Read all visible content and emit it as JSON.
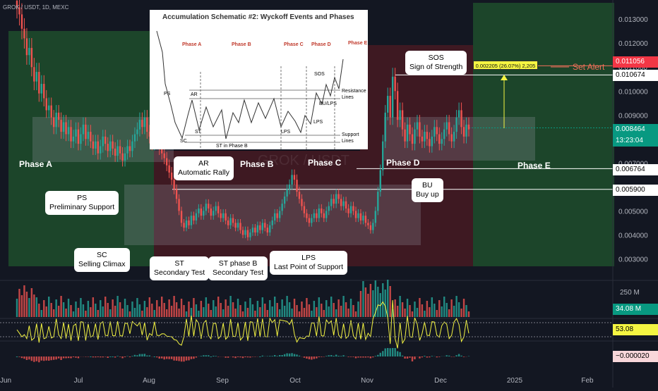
{
  "chart_data": {
    "type": "candlestick",
    "title": "GROK / USDT, 1D, MEXC",
    "watermark": "GROK / USDT",
    "x_ticks": [
      "Jun",
      "Jul",
      "Aug",
      "Sep",
      "Oct",
      "Nov",
      "Dec",
      "2025",
      "Feb"
    ],
    "y_ticks": [
      "0.013000",
      "0.012000",
      "0.011000",
      "0.010000",
      "0.009000",
      "0.008000",
      "0.007000",
      "0.006000",
      "0.005000",
      "0.004000",
      "0.003000"
    ],
    "ylim": [
      0.0021,
      0.0138
    ],
    "price_levels": [
      {
        "label": "0.011056",
        "value": 0.011056,
        "color": "#f23645"
      },
      {
        "label": "0.010674",
        "value": 0.010674,
        "color": "#ffffff"
      },
      {
        "label": "0.008464",
        "value": 0.008464,
        "color": "#089981"
      },
      {
        "label": "0.006764",
        "value": 0.006764,
        "color": "#ffffff"
      },
      {
        "label": "0.005900",
        "value": 0.0059,
        "color": "#ffffff"
      }
    ],
    "countdown": "13:23:04",
    "close_approx": [
      0.0135,
      0.0132,
      0.0126,
      0.0122,
      0.0115,
      0.0118,
      0.011,
      0.0104,
      0.0108,
      0.0099,
      0.0103,
      0.0097,
      0.0092,
      0.0094,
      0.0089,
      0.0085,
      0.0091,
      0.0088,
      0.0083,
      0.0087,
      0.0082,
      0.0085,
      0.0079,
      0.0081,
      0.0084,
      0.0078,
      0.0082,
      0.0086,
      0.008,
      0.0083,
      0.0079,
      0.0076,
      0.0079,
      0.0074,
      0.0077,
      0.0081,
      0.0078,
      0.0075,
      0.0079,
      0.0076,
      0.0073,
      0.0077,
      0.0074,
      0.0071,
      0.0074,
      0.0077,
      0.0075,
      0.0079,
      0.0082,
      0.0084,
      0.0088,
      0.0085,
      0.0089,
      0.0083,
      0.0081,
      0.0078,
      0.0082,
      0.0079,
      0.0076,
      0.0074,
      0.0072,
      0.0069,
      0.0066,
      0.0063,
      0.0059,
      0.0055,
      0.005,
      0.0045,
      0.0043,
      0.0046,
      0.0044,
      0.0048,
      0.0046,
      0.0049,
      0.0051,
      0.0048,
      0.005,
      0.0053,
      0.0051,
      0.0048,
      0.005,
      0.0052,
      0.0049,
      0.0047,
      0.0049,
      0.0046,
      0.0044,
      0.0047,
      0.0045,
      0.0043,
      0.0045,
      0.0042,
      0.004,
      0.0042,
      0.0039,
      0.0041,
      0.0043,
      0.0041,
      0.0044,
      0.0042,
      0.0045,
      0.0043,
      0.0041,
      0.0044,
      0.0046,
      0.0049,
      0.0047,
      0.005,
      0.0053,
      0.0056,
      0.0059,
      0.0061,
      0.0065,
      0.0063,
      0.0058,
      0.0055,
      0.0052,
      0.0049,
      0.0047,
      0.0045,
      0.0047,
      0.0049,
      0.0047,
      0.0051,
      0.0049,
      0.0047,
      0.005,
      0.0052,
      0.0055,
      0.0053,
      0.0057,
      0.0055,
      0.0052,
      0.0054,
      0.0051,
      0.0049,
      0.0052,
      0.005,
      0.0047,
      0.0049,
      0.0046,
      0.0048,
      0.0045,
      0.0044,
      0.0042,
      0.0045,
      0.005,
      0.0058,
      0.0067,
      0.0079,
      0.0091,
      0.0098,
      0.0089,
      0.0106,
      0.01,
      0.0088,
      0.0092,
      0.0084,
      0.0079,
      0.0086,
      0.0082,
      0.0078,
      0.0084,
      0.0087,
      0.0081,
      0.0079,
      0.0083,
      0.008,
      0.0077,
      0.0081,
      0.0085,
      0.0082,
      0.0078,
      0.008,
      0.0084,
      0.0087,
      0.0082,
      0.0079,
      0.0083,
      0.0089,
      0.0092,
      0.0085,
      0.0081,
      0.0086,
      0.0084
    ],
    "volume_label": "250 M",
    "volume_last": "34.08 M",
    "rsi_last": "53.08",
    "macd_last": "−0.000020",
    "alert_label": "Set Alert",
    "measure_label": "0.002205 (26.07%) 2,205"
  },
  "phases": {
    "a": "Phase A",
    "b": "Phase B",
    "c": "Phase C",
    "d": "Phase D",
    "e": "Phase E"
  },
  "callouts": {
    "ps": [
      "PS",
      "Preliminary Support"
    ],
    "sc": [
      "SC",
      "Selling Climax"
    ],
    "ar": [
      "AR",
      "Automatic Rally"
    ],
    "st": [
      "ST",
      "Secondary Test"
    ],
    "stb": [
      "ST phase B",
      "Secondary Test"
    ],
    "lps": [
      "LPS",
      "Last Point of Support"
    ],
    "bu": [
      "BU",
      "Buy up"
    ],
    "sos": [
      "SOS",
      "Sign of Strength"
    ]
  },
  "schematic": {
    "title": "Accumulation Schematic #2: Wyckoff Events and Phases",
    "phases": [
      "Phase A",
      "Phase B",
      "Phase C",
      "Phase D",
      "Phase E"
    ],
    "labels": [
      "PS",
      "AR",
      "ST",
      "SC",
      "ST in Phase B",
      "LPS",
      "LPS",
      "SOS",
      "BU/LPS",
      "Resistance",
      "Lines",
      "Support",
      "Lines"
    ]
  }
}
